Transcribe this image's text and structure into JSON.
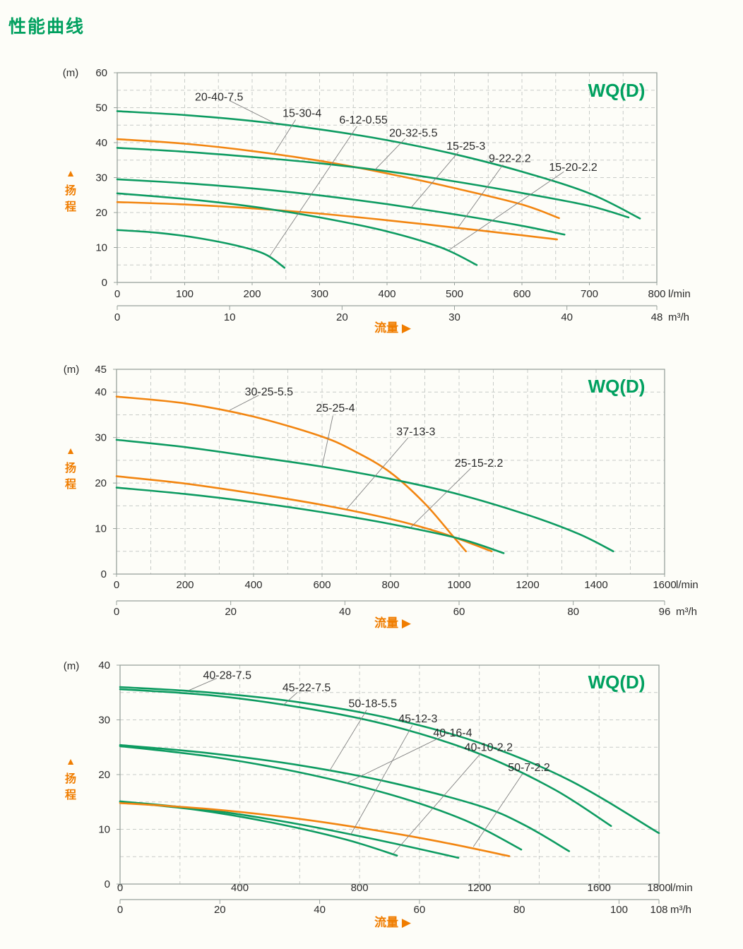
{
  "title": "性能曲线",
  "labels": {
    "y_unit": "(m)",
    "head_axis": "扬程",
    "head_arrow": "▲",
    "flow_axis": "流量",
    "flow_arrow": "▶",
    "unit_primary": "l/min",
    "unit_secondary": "m³/h",
    "series_family": "WQ(D)"
  },
  "colors": {
    "green": "#0d9b61",
    "orange": "#f28510",
    "leader": "#818181",
    "grid": "#c8ccc8",
    "border": "#99a29d",
    "tick_text": "#2b2b2b",
    "title_green": "#00a05f",
    "axis_orange": "#f07d00"
  },
  "chart_data": [
    {
      "type": "line",
      "family_label": "WQ(D)",
      "xlabel": "流量",
      "ylabel": "扬程",
      "x_max_lmin": 800,
      "y_max_m": 60,
      "grid_x_lmin": 50,
      "grid_y_m": 5,
      "x_ticks_lmin": [
        0,
        100,
        200,
        300,
        400,
        500,
        600,
        700,
        800
      ],
      "x_ticks_m3h": [
        0,
        10,
        20,
        30,
        40,
        48
      ],
      "y_ticks_m": [
        0,
        10,
        20,
        30,
        40,
        50,
        60
      ],
      "series": [
        {
          "name": "20-40-7.5",
          "color": "green",
          "points": [
            [
              0,
              49
            ],
            [
              100,
              47.9
            ],
            [
              200,
              46.2
            ],
            [
              300,
              43.8
            ],
            [
              400,
              40.7
            ],
            [
              500,
              36.7
            ],
            [
              600,
              31.7
            ],
            [
              700,
              25.5
            ],
            [
              775,
              18.3
            ]
          ],
          "label_pos": [
            151,
            53
          ],
          "attach": [
            235,
            45.4
          ]
        },
        {
          "name": "15-30-4",
          "color": "orange",
          "points": [
            [
              0,
              41
            ],
            [
              100,
              39.7
            ],
            [
              200,
              37.6
            ],
            [
              300,
              34.8
            ],
            [
              400,
              31.2
            ],
            [
              500,
              27
            ],
            [
              600,
              22.3
            ],
            [
              655,
              18.4
            ]
          ],
          "label_pos": [
            274,
            48.4
          ],
          "attach": [
            233,
            37
          ]
        },
        {
          "name": "6-12-0.55",
          "color": "green",
          "points": [
            [
              0,
              15
            ],
            [
              60,
              14.2
            ],
            [
              120,
              12.7
            ],
            [
              180,
              10.4
            ],
            [
              220,
              8
            ],
            [
              248,
              4.2
            ]
          ],
          "label_pos": [
            365,
            46.5
          ],
          "attach": [
            226,
            7.5
          ]
        },
        {
          "name": "20-32-5.5",
          "color": "green",
          "points": [
            [
              0,
              38.5
            ],
            [
              100,
              37.4
            ],
            [
              200,
              35.9
            ],
            [
              300,
              34.1
            ],
            [
              400,
              31.8
            ],
            [
              500,
              28.9
            ],
            [
              600,
              25.6
            ],
            [
              700,
              21.9
            ],
            [
              758,
              18.6
            ]
          ],
          "label_pos": [
            439,
            42.7
          ],
          "attach": [
            382,
            32.2
          ]
        },
        {
          "name": "15-25-3",
          "color": "green",
          "points": [
            [
              0,
              29.5
            ],
            [
              100,
              28.4
            ],
            [
              200,
              26.9
            ],
            [
              300,
              24.9
            ],
            [
              400,
              22.4
            ],
            [
              500,
              19.5
            ],
            [
              600,
              16.2
            ],
            [
              663,
              13.7
            ]
          ],
          "label_pos": [
            517,
            39
          ],
          "attach": [
            436,
            21.5
          ]
        },
        {
          "name": "9-22-2.2",
          "color": "orange",
          "points": [
            [
              0,
              23
            ],
            [
              100,
              22.3
            ],
            [
              200,
              21.2
            ],
            [
              300,
              19.7
            ],
            [
              400,
              17.8
            ],
            [
              500,
              15.7
            ],
            [
              600,
              13.5
            ],
            [
              652,
              12.3
            ]
          ],
          "label_pos": [
            582,
            35.5
          ],
          "attach": [
            505,
            15.6
          ]
        },
        {
          "name": "15-20-2.2",
          "color": "green",
          "points": [
            [
              0,
              25.5
            ],
            [
              100,
              23.9
            ],
            [
              200,
              21.7
            ],
            [
              300,
              18.6
            ],
            [
              400,
              14.6
            ],
            [
              480,
              10
            ],
            [
              533,
              5
            ]
          ],
          "label_pos": [
            676,
            32.9
          ],
          "attach": [
            492,
            9.3
          ]
        }
      ]
    },
    {
      "type": "line",
      "family_label": "WQ(D)",
      "xlabel": "流量",
      "ylabel": "扬程",
      "x_max_lmin": 1600,
      "y_max_m": 45,
      "grid_x_lmin": 100,
      "grid_y_m": 5,
      "x_ticks_lmin": [
        0,
        200,
        400,
        600,
        800,
        1000,
        1200,
        1400,
        1600
      ],
      "x_ticks_m3h": [
        0,
        20,
        40,
        60,
        80,
        96
      ],
      "y_ticks_m": [
        0,
        10,
        20,
        30,
        40,
        45
      ],
      "series": [
        {
          "name": "30-25-5.5",
          "color": "orange",
          "points": [
            [
              0,
              39
            ],
            [
              200,
              37.5
            ],
            [
              400,
              34.6
            ],
            [
              600,
              30.2
            ],
            [
              700,
              26.8
            ],
            [
              800,
              22.3
            ],
            [
              900,
              15.5
            ],
            [
              980,
              8.5
            ],
            [
              1020,
              5
            ]
          ],
          "label_pos": [
            445,
            40
          ],
          "attach": [
            330,
            36
          ]
        },
        {
          "name": "25-25-4",
          "color": "green",
          "points": [
            [
              0,
              29.5
            ],
            [
              200,
              27.9
            ],
            [
              400,
              25.8
            ],
            [
              600,
              23.6
            ],
            [
              800,
              20.9
            ],
            [
              1000,
              17.5
            ],
            [
              1200,
              13
            ],
            [
              1350,
              8.8
            ],
            [
              1450,
              5
            ]
          ],
          "label_pos": [
            639,
            36.5
          ],
          "attach": [
            600,
            23.6
          ]
        },
        {
          "name": "37-13-3",
          "color": "orange",
          "points": [
            [
              0,
              21.5
            ],
            [
              200,
              19.9
            ],
            [
              400,
              17.7
            ],
            [
              600,
              15.2
            ],
            [
              800,
              12.1
            ],
            [
              950,
              9
            ],
            [
              1095,
              5
            ]
          ],
          "label_pos": [
            874,
            31.3
          ],
          "attach": [
            672,
            14.3
          ]
        },
        {
          "name": "25-15-2.2",
          "color": "green",
          "points": [
            [
              0,
              19
            ],
            [
              200,
              17.6
            ],
            [
              400,
              15.8
            ],
            [
              600,
              13.6
            ],
            [
              800,
              11
            ],
            [
              1000,
              7.8
            ],
            [
              1130,
              4.6
            ]
          ],
          "label_pos": [
            1058,
            24.4
          ],
          "attach": [
            858,
            10.2
          ]
        }
      ]
    },
    {
      "type": "line",
      "family_label": "WQ(D)",
      "xlabel": "流量",
      "ylabel": "扬程",
      "x_max_lmin": 1800,
      "y_max_m": 40,
      "grid_x_lmin": 200,
      "grid_y_m": 5,
      "x_ticks_lmin": [
        0,
        400,
        800,
        1200,
        1600,
        1800
      ],
      "x_ticks_m3h": [
        0,
        20,
        40,
        60,
        80,
        100,
        108
      ],
      "y_ticks_m": [
        0,
        10,
        20,
        30,
        40
      ],
      "series": [
        {
          "name": "40-28-7.5",
          "color": "green",
          "points": [
            [
              0,
              36
            ],
            [
              300,
              35
            ],
            [
              600,
              33.2
            ],
            [
              900,
              30.3
            ],
            [
              1200,
              25.8
            ],
            [
              1500,
              19
            ],
            [
              1800,
              9.3
            ]
          ],
          "label_pos": [
            358,
            38.1
          ],
          "attach": [
            230,
            35.4
          ]
        },
        {
          "name": "45-22-7.5",
          "color": "green",
          "points": [
            [
              0,
              35.6
            ],
            [
              300,
              34.5
            ],
            [
              600,
              32.3
            ],
            [
              900,
              29
            ],
            [
              1200,
              23.8
            ],
            [
              1450,
              17.3
            ],
            [
              1640,
              10.6
            ]
          ],
          "label_pos": [
            623,
            35.9
          ],
          "attach": [
            545,
            32.7
          ]
        },
        {
          "name": "50-18-5.5",
          "color": "green",
          "points": [
            [
              0,
              25.4
            ],
            [
              300,
              23.9
            ],
            [
              600,
              21.7
            ],
            [
              900,
              18.6
            ],
            [
              1200,
              14.3
            ],
            [
              1350,
              10.8
            ],
            [
              1500,
              6
            ]
          ],
          "label_pos": [
            844,
            33
          ],
          "attach": [
            700,
            20.7
          ]
        },
        {
          "name": "45-12-3",
          "color": "green",
          "points": [
            [
              0,
              15.1
            ],
            [
              300,
              13.5
            ],
            [
              600,
              10.9
            ],
            [
              900,
              7.6
            ],
            [
              1130,
              4.8
            ]
          ],
          "label_pos": [
            995,
            30.2
          ],
          "attach": [
            770,
            9
          ]
        },
        {
          "name": "40-16-4",
          "color": "green",
          "points": [
            [
              0,
              25.2
            ],
            [
              300,
              23.3
            ],
            [
              600,
              20.4
            ],
            [
              900,
              16.4
            ],
            [
              1150,
              11.7
            ],
            [
              1340,
              6.3
            ]
          ],
          "label_pos": [
            1111,
            27.6
          ],
          "attach": [
            755,
            18.4
          ]
        },
        {
          "name": "40-10-2.2",
          "color": "green",
          "points": [
            [
              0,
              15
            ],
            [
              250,
              13.6
            ],
            [
              500,
              11.3
            ],
            [
              750,
              8.2
            ],
            [
              925,
              5.2
            ]
          ],
          "label_pos": [
            1231,
            25
          ],
          "attach": [
            912,
            5.5
          ]
        },
        {
          "name": "50-7-2.2",
          "color": "orange",
          "points": [
            [
              0,
              14.8
            ],
            [
              300,
              13.7
            ],
            [
              600,
              11.9
            ],
            [
              900,
              9.4
            ],
            [
              1100,
              7.4
            ],
            [
              1300,
              5.1
            ]
          ],
          "label_pos": [
            1366,
            21.3
          ],
          "attach": [
            1180,
            6.8
          ]
        }
      ]
    }
  ]
}
